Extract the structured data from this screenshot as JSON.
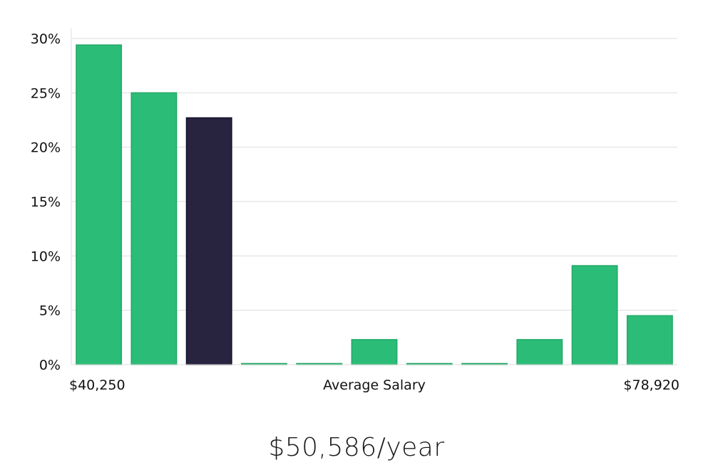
{
  "chart_data": {
    "type": "bar",
    "title": "",
    "xlabel": "Average Salary",
    "ylabel": "",
    "x_min_label": "$40,250",
    "x_max_label": "$78,920",
    "categories": [
      "bin-1",
      "bin-2",
      "bin-3",
      "bin-4",
      "bin-5",
      "bin-6",
      "bin-7",
      "bin-8",
      "bin-9",
      "bin-10",
      "bin-11"
    ],
    "values": [
      29.4,
      25.0,
      22.7,
      0.1,
      0.1,
      2.3,
      0.1,
      0.1,
      2.3,
      9.1,
      4.5
    ],
    "highlight_index": 2,
    "ylim": [
      0,
      30
    ],
    "yticks": [
      0,
      5,
      10,
      15,
      20,
      25,
      30
    ],
    "ytick_labels": [
      "0%",
      "5%",
      "10%",
      "15%",
      "20%",
      "25%",
      "30%"
    ],
    "grid": true,
    "colors": {
      "bar": "#2bbd77",
      "bar_edge": "#21a866",
      "highlight": "#28233f",
      "highlight_edge": "#14102a",
      "grid": "#dddddd"
    }
  },
  "salary_summary": "$50,586/year"
}
